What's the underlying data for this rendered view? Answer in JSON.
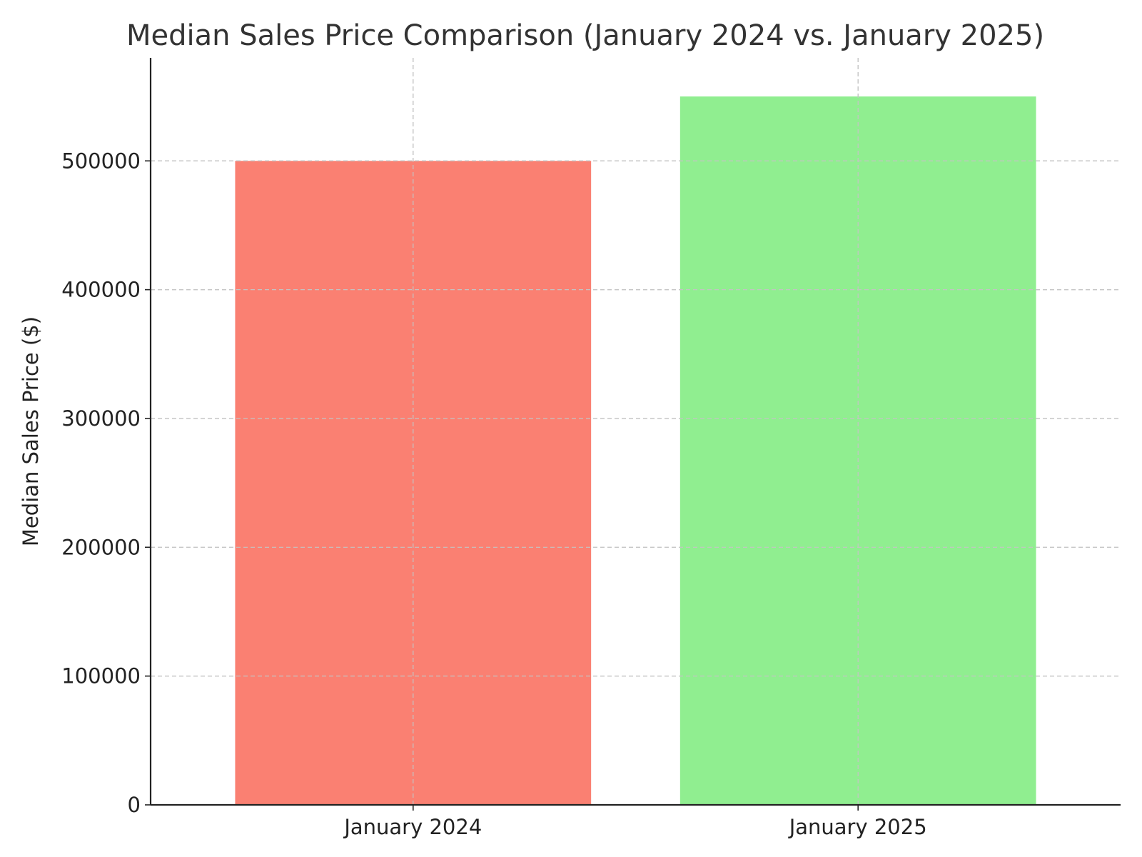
{
  "chart_data": {
    "type": "bar",
    "title": "Median Sales Price Comparison (January 2024 vs. January 2025)",
    "xlabel": "",
    "ylabel": "Median Sales Price ($)",
    "categories": [
      "January 2024",
      "January 2025"
    ],
    "values": [
      500000,
      550000
    ],
    "colors": [
      "#fa8072",
      "#90ee90"
    ],
    "ylim": [
      0,
      580000
    ],
    "yticks": [
      0,
      100000,
      200000,
      300000,
      400000,
      500000
    ],
    "ytick_labels": [
      "0",
      "100000",
      "200000",
      "300000",
      "400000",
      "500000"
    ],
    "grid": true,
    "legend": "none"
  }
}
